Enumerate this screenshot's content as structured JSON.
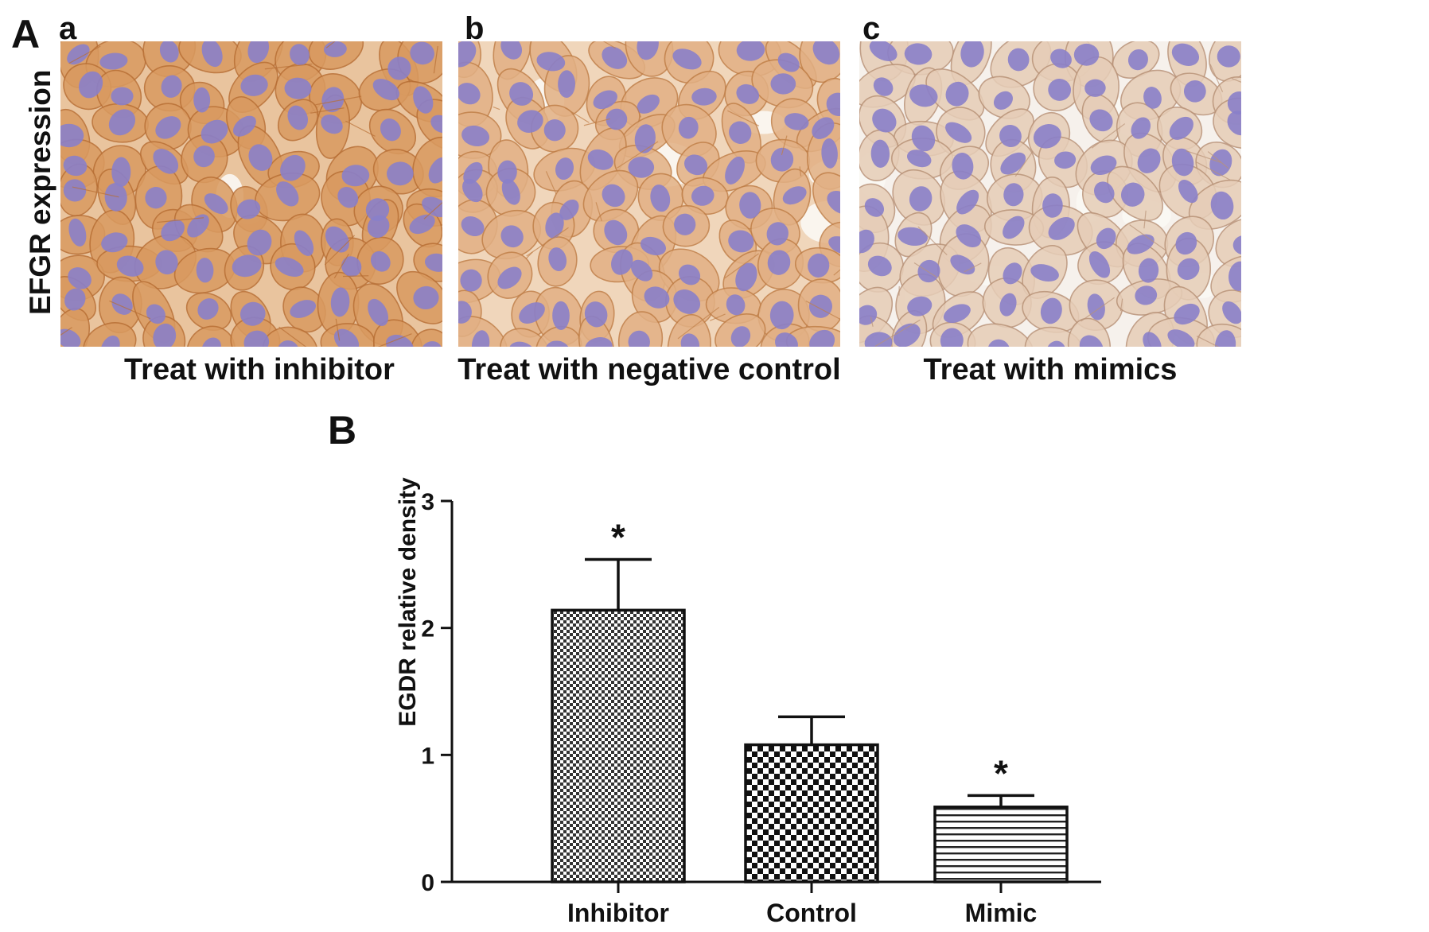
{
  "panel_A": {
    "letter": "A",
    "ylabel": "EFGR expression",
    "panels": [
      {
        "letter": "a",
        "caption": "Treat with inhibitor",
        "stain_intensity": "high"
      },
      {
        "letter": "b",
        "caption": "Treat with negative control",
        "stain_intensity": "medium"
      },
      {
        "letter": "c",
        "caption": "Treat with mimics",
        "stain_intensity": "low"
      }
    ],
    "colors": {
      "nucleus": "#8a7fc9",
      "cytoplasm_high": "#d99a60",
      "cytoplasm_medium": "#e2b084",
      "cytoplasm_low": "#e6cdb7",
      "background_low": "#f6f1ec"
    }
  },
  "panel_B": {
    "letter": "B"
  },
  "chart_data": {
    "type": "bar",
    "title": "",
    "xlabel": "",
    "ylabel": "EGDR relative density",
    "ylim": [
      0,
      3
    ],
    "yticks": [
      0,
      1,
      2,
      3
    ],
    "categories": [
      "Inhibitor",
      "Control",
      "Mimic"
    ],
    "values": [
      2.14,
      1.08,
      0.59
    ],
    "error": [
      0.4,
      0.22,
      0.09
    ],
    "significance": [
      "*",
      "",
      "*"
    ],
    "patterns": [
      "dense-checker",
      "checker",
      "horizontal-stripes"
    ],
    "grid": false,
    "legend": "none"
  }
}
